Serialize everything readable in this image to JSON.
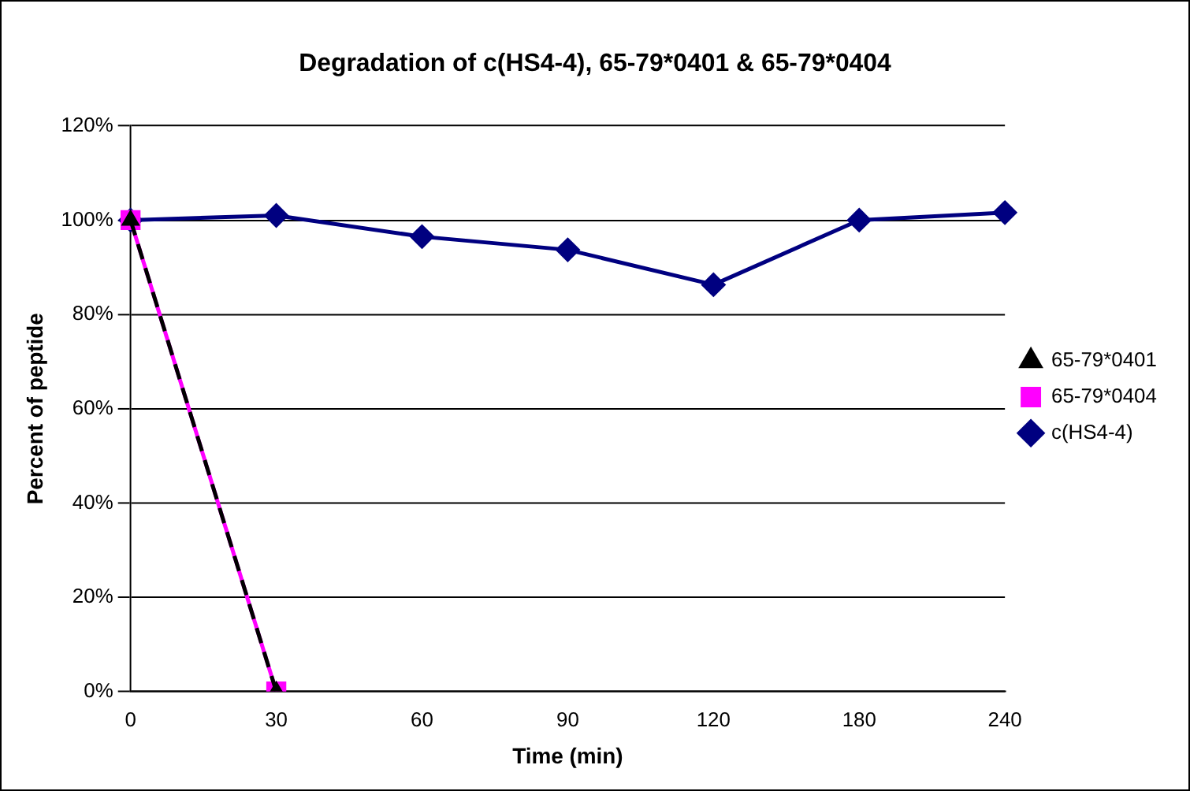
{
  "chart_data": {
    "type": "line",
    "title": "Degradation of c(HS4-4), 65-79*0401 & 65-79*0404",
    "xlabel": "Time (min)",
    "ylabel": "Percent of peptide",
    "categories": [
      "0",
      "30",
      "60",
      "90",
      "120",
      "180",
      "240"
    ],
    "series": [
      {
        "name": "c(HS4-4)",
        "color": "#000080",
        "marker": "diamond",
        "line_style": "solid",
        "values": [
          100,
          101,
          96.5,
          93.7,
          86.3,
          100,
          101.6
        ]
      },
      {
        "name": "65-79*0404",
        "color": "#ff00ff",
        "marker": "square",
        "line_style": "solid",
        "values": [
          100,
          0,
          null,
          null,
          null,
          null,
          null
        ]
      },
      {
        "name": "65-79*0401",
        "color": "#000000",
        "marker": "triangle",
        "line_style": "dashed",
        "values": [
          100,
          0,
          null,
          null,
          null,
          null,
          null
        ]
      }
    ],
    "ylim": [
      0,
      120
    ],
    "yticks": [
      {
        "value": 0,
        "label": "0%"
      },
      {
        "value": 20,
        "label": "20%"
      },
      {
        "value": 40,
        "label": "40%"
      },
      {
        "value": 60,
        "label": "60%"
      },
      {
        "value": 80,
        "label": "80%"
      },
      {
        "value": 100,
        "label": "100%"
      },
      {
        "value": 120,
        "label": "120%"
      }
    ],
    "grid": "y",
    "legend": "right"
  }
}
